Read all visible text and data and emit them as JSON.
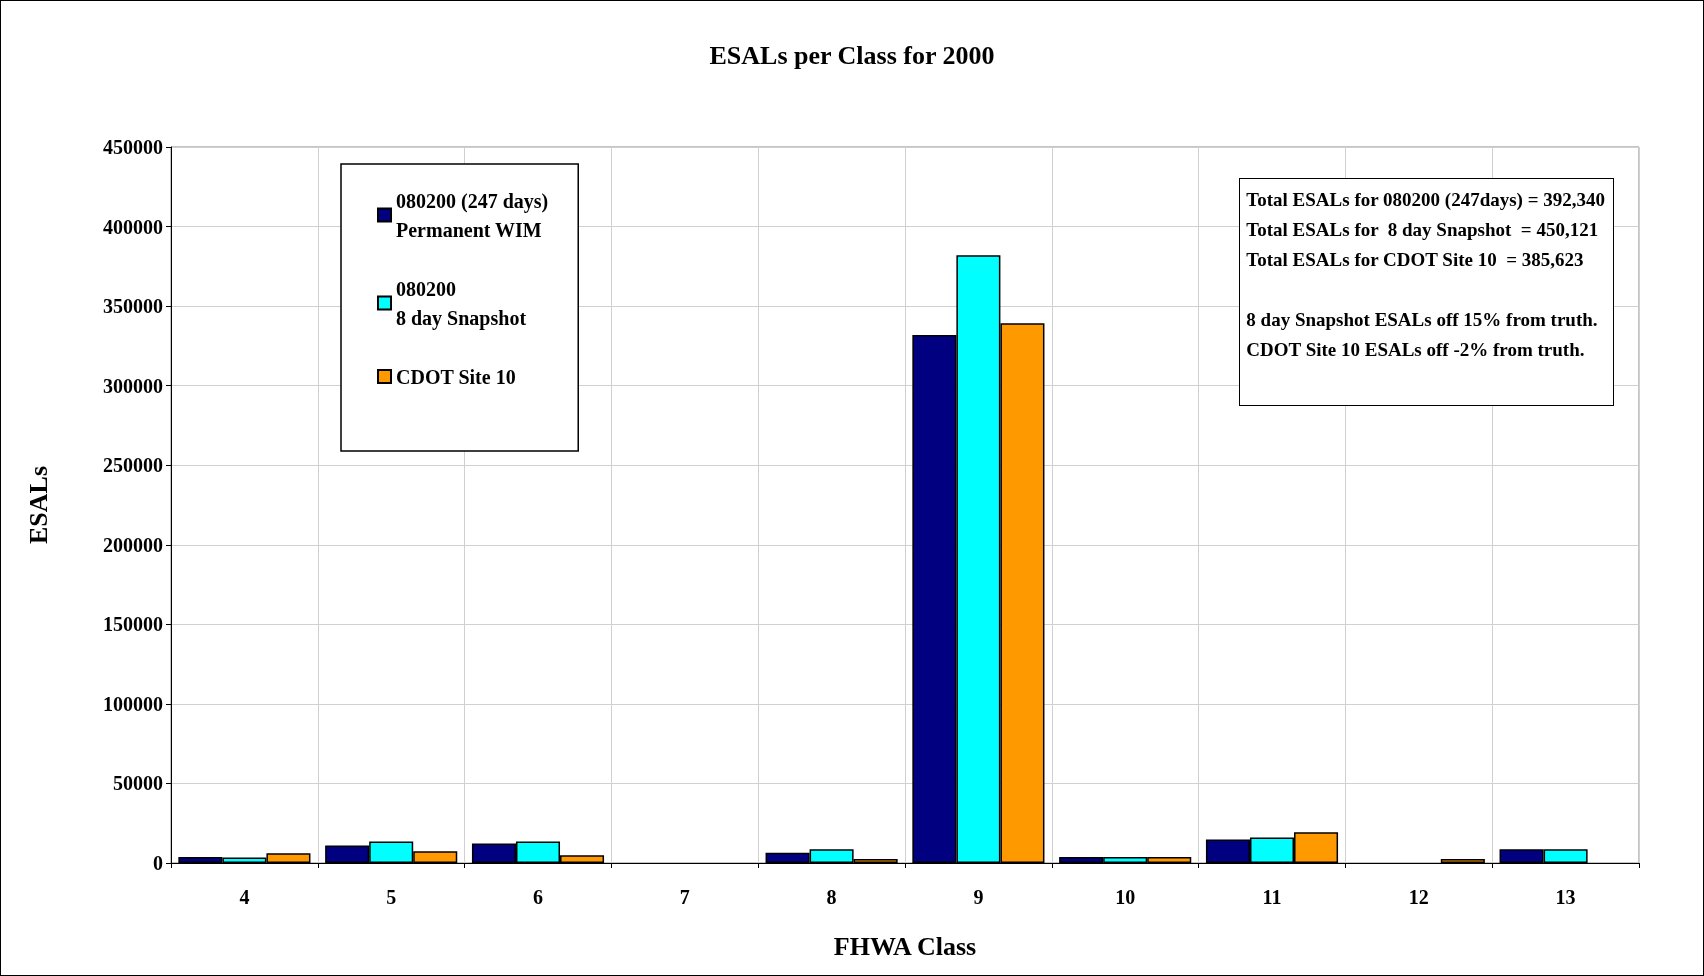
{
  "chart_data": {
    "type": "bar",
    "title": "ESALs per Class for 2000",
    "xlabel": "FHWA Class",
    "ylabel": "ESALs",
    "categories": [
      "4",
      "5",
      "6",
      "7",
      "8",
      "9",
      "10",
      "11",
      "12",
      "13"
    ],
    "series": [
      {
        "name": "080200 (247 days)\nPermanent WIM",
        "color": "#000080",
        "values": [
          3700,
          11000,
          12300,
          0,
          6400,
          331900,
          3700,
          14700,
          0,
          8600
        ]
      },
      {
        "name": "080200\n8 day Snapshot",
        "color": "#00ffff",
        "values": [
          3500,
          13500,
          13500,
          0,
          8600,
          381900,
          3700,
          16000,
          0,
          8600
        ]
      },
      {
        "name": "CDOT Site 10",
        "color": "#ff9900",
        "values": [
          6100,
          7400,
          4900,
          0,
          2500,
          339200,
          3700,
          19400,
          2500,
          0
        ]
      }
    ],
    "ylim": [
      0,
      450000
    ],
    "yticks": [
      0,
      50000,
      100000,
      150000,
      200000,
      250000,
      300000,
      350000,
      400000,
      450000
    ],
    "grid": true,
    "legend": "top left",
    "annotations": [
      "Total ESALs for 080200 (247days) = 392,340",
      "Total ESALs for  8 day Snapshot  = 450,121",
      "Total ESALs for CDOT Site 10  = 385,623",
      "8 day Snapshot ESALs off 15% from truth.",
      "CDOT Site 10 ESALs off -2% from truth."
    ]
  }
}
